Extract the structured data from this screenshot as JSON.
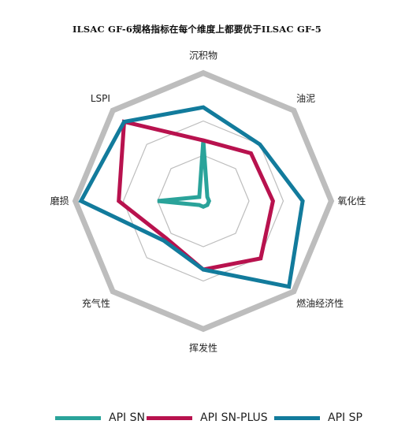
{
  "chart_data": {
    "type": "radar",
    "title": "ILSAC GF-6规格指标在每个维度上都要优于ILSAC GF-5",
    "axes": [
      "沉积物",
      "油泥",
      "氧化性",
      "燃油经济性",
      "挥发性",
      "充气性",
      "磨损",
      "LSPI"
    ],
    "rings": 3,
    "ring_color": "#bdbdbd",
    "legend_position": "bottom",
    "series": [
      {
        "name": "API SN",
        "color": "#2aa39a",
        "values": [
          0.53,
          0.05,
          0.05,
          0.05,
          0.05,
          0.05,
          0.4,
          0.05
        ]
      },
      {
        "name": "API SN-PLUS",
        "color": "#b8124e",
        "values": [
          0.53,
          0.59,
          0.61,
          0.71,
          0.6,
          0.46,
          0.74,
          0.98
        ]
      },
      {
        "name": "API SP",
        "color": "#127b9c",
        "values": [
          0.82,
          0.7,
          0.87,
          1.06,
          0.6,
          0.49,
          1.07,
          0.98
        ]
      }
    ]
  }
}
